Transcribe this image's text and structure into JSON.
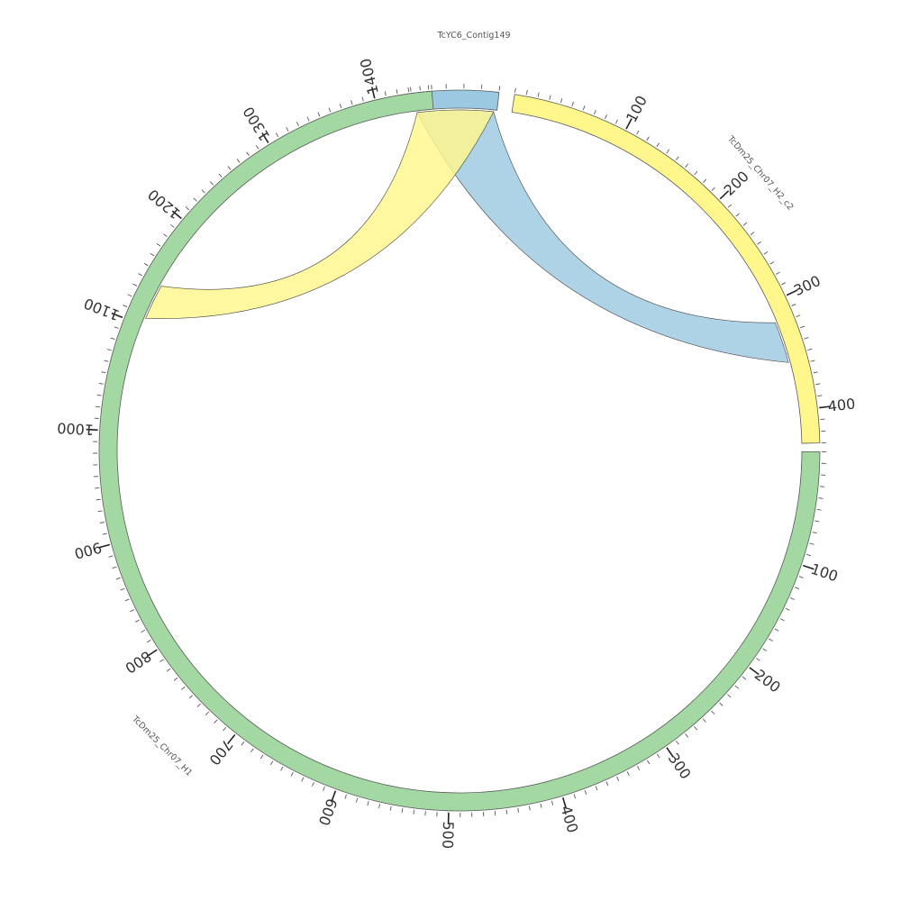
{
  "segments": [
    {
      "id": "contig149",
      "name": "TcYC6_Contig149",
      "length": 50,
      "color": "#9cc9e2",
      "label_pos": "top-center"
    },
    {
      "id": "h2c2",
      "name": "TcDm25_Chr07_H2_c2",
      "length": 430,
      "color": "#fff68c",
      "label_pos": "top-right"
    },
    {
      "id": "h1",
      "name": "TcDm25_Chr07_H1",
      "length": 1450,
      "color": "#a3d8a3",
      "label_pos": "bottom-left"
    }
  ],
  "tick_labels": {
    "contig149": [],
    "h2c2": [
      "100",
      "200",
      "300",
      "400"
    ],
    "h1": [
      "100",
      "200",
      "300",
      "400",
      "500",
      "600",
      "700",
      "800",
      "900",
      "1000",
      "1100",
      "1200",
      "1300",
      "1400"
    ]
  },
  "links": [
    {
      "from": "contig149",
      "from_start": 2,
      "from_end": 48,
      "to": "h2c2",
      "to_start": 318,
      "to_end": 356,
      "color": "#9cc9e2"
    },
    {
      "from": "contig149",
      "from_start": 2,
      "from_end": 48,
      "to": "h1",
      "to_start": 1107,
      "to_end": 1140,
      "color": "#fff68c"
    }
  ]
}
